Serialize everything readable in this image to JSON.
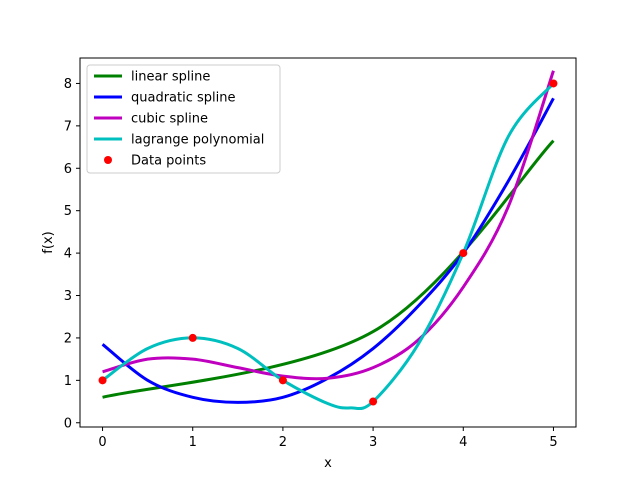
{
  "chart_data": {
    "type": "line",
    "title": "",
    "xlabel": "x",
    "ylabel": "f(x)",
    "xlim": [
      -0.25,
      5.25
    ],
    "ylim": [
      -0.1,
      8.6
    ],
    "xticks": [
      0,
      1,
      2,
      3,
      4,
      5
    ],
    "yticks": [
      0,
      1,
      2,
      3,
      4,
      5,
      6,
      7,
      8
    ],
    "grid": false,
    "legend_position": "top-left",
    "data_points": {
      "name": "Data points",
      "color": "#ff0000",
      "x": [
        0,
        1,
        2,
        3,
        4,
        5
      ],
      "y": [
        1.0,
        2.0,
        1.0,
        0.5,
        4.0,
        8.0
      ]
    },
    "series": [
      {
        "name": "linear spline",
        "color": "#008000",
        "x": [
          0,
          3,
          5
        ],
        "y": [
          0.6,
          2.15,
          6.65
        ]
      },
      {
        "name": "quadratic spline",
        "color": "#0000ff",
        "x": [
          0,
          0.5,
          1,
          1.5,
          2,
          2.5,
          3,
          3.5,
          4,
          4.5,
          5
        ],
        "y": [
          1.85,
          1.0,
          0.6,
          0.48,
          0.6,
          1.05,
          1.75,
          2.75,
          4.0,
          5.7,
          7.65
        ]
      },
      {
        "name": "cubic spline",
        "color": "#bf00bf",
        "x": [
          0,
          0.5,
          1,
          1.5,
          2,
          2.5,
          3,
          3.5,
          4,
          4.5,
          5
        ],
        "y": [
          1.2,
          1.5,
          1.5,
          1.3,
          1.1,
          1.05,
          1.3,
          1.95,
          3.2,
          5.1,
          8.3
        ]
      },
      {
        "name": "lagrange polynomial",
        "color": "#00bfbf",
        "x": [
          0,
          0.5,
          1,
          1.5,
          2,
          2.5,
          2.75,
          3,
          3.5,
          4,
          4.5,
          5
        ],
        "y": [
          1.0,
          1.75,
          2.0,
          1.75,
          1.0,
          0.45,
          0.35,
          0.5,
          1.85,
          4.0,
          6.75,
          8.0
        ]
      }
    ]
  }
}
